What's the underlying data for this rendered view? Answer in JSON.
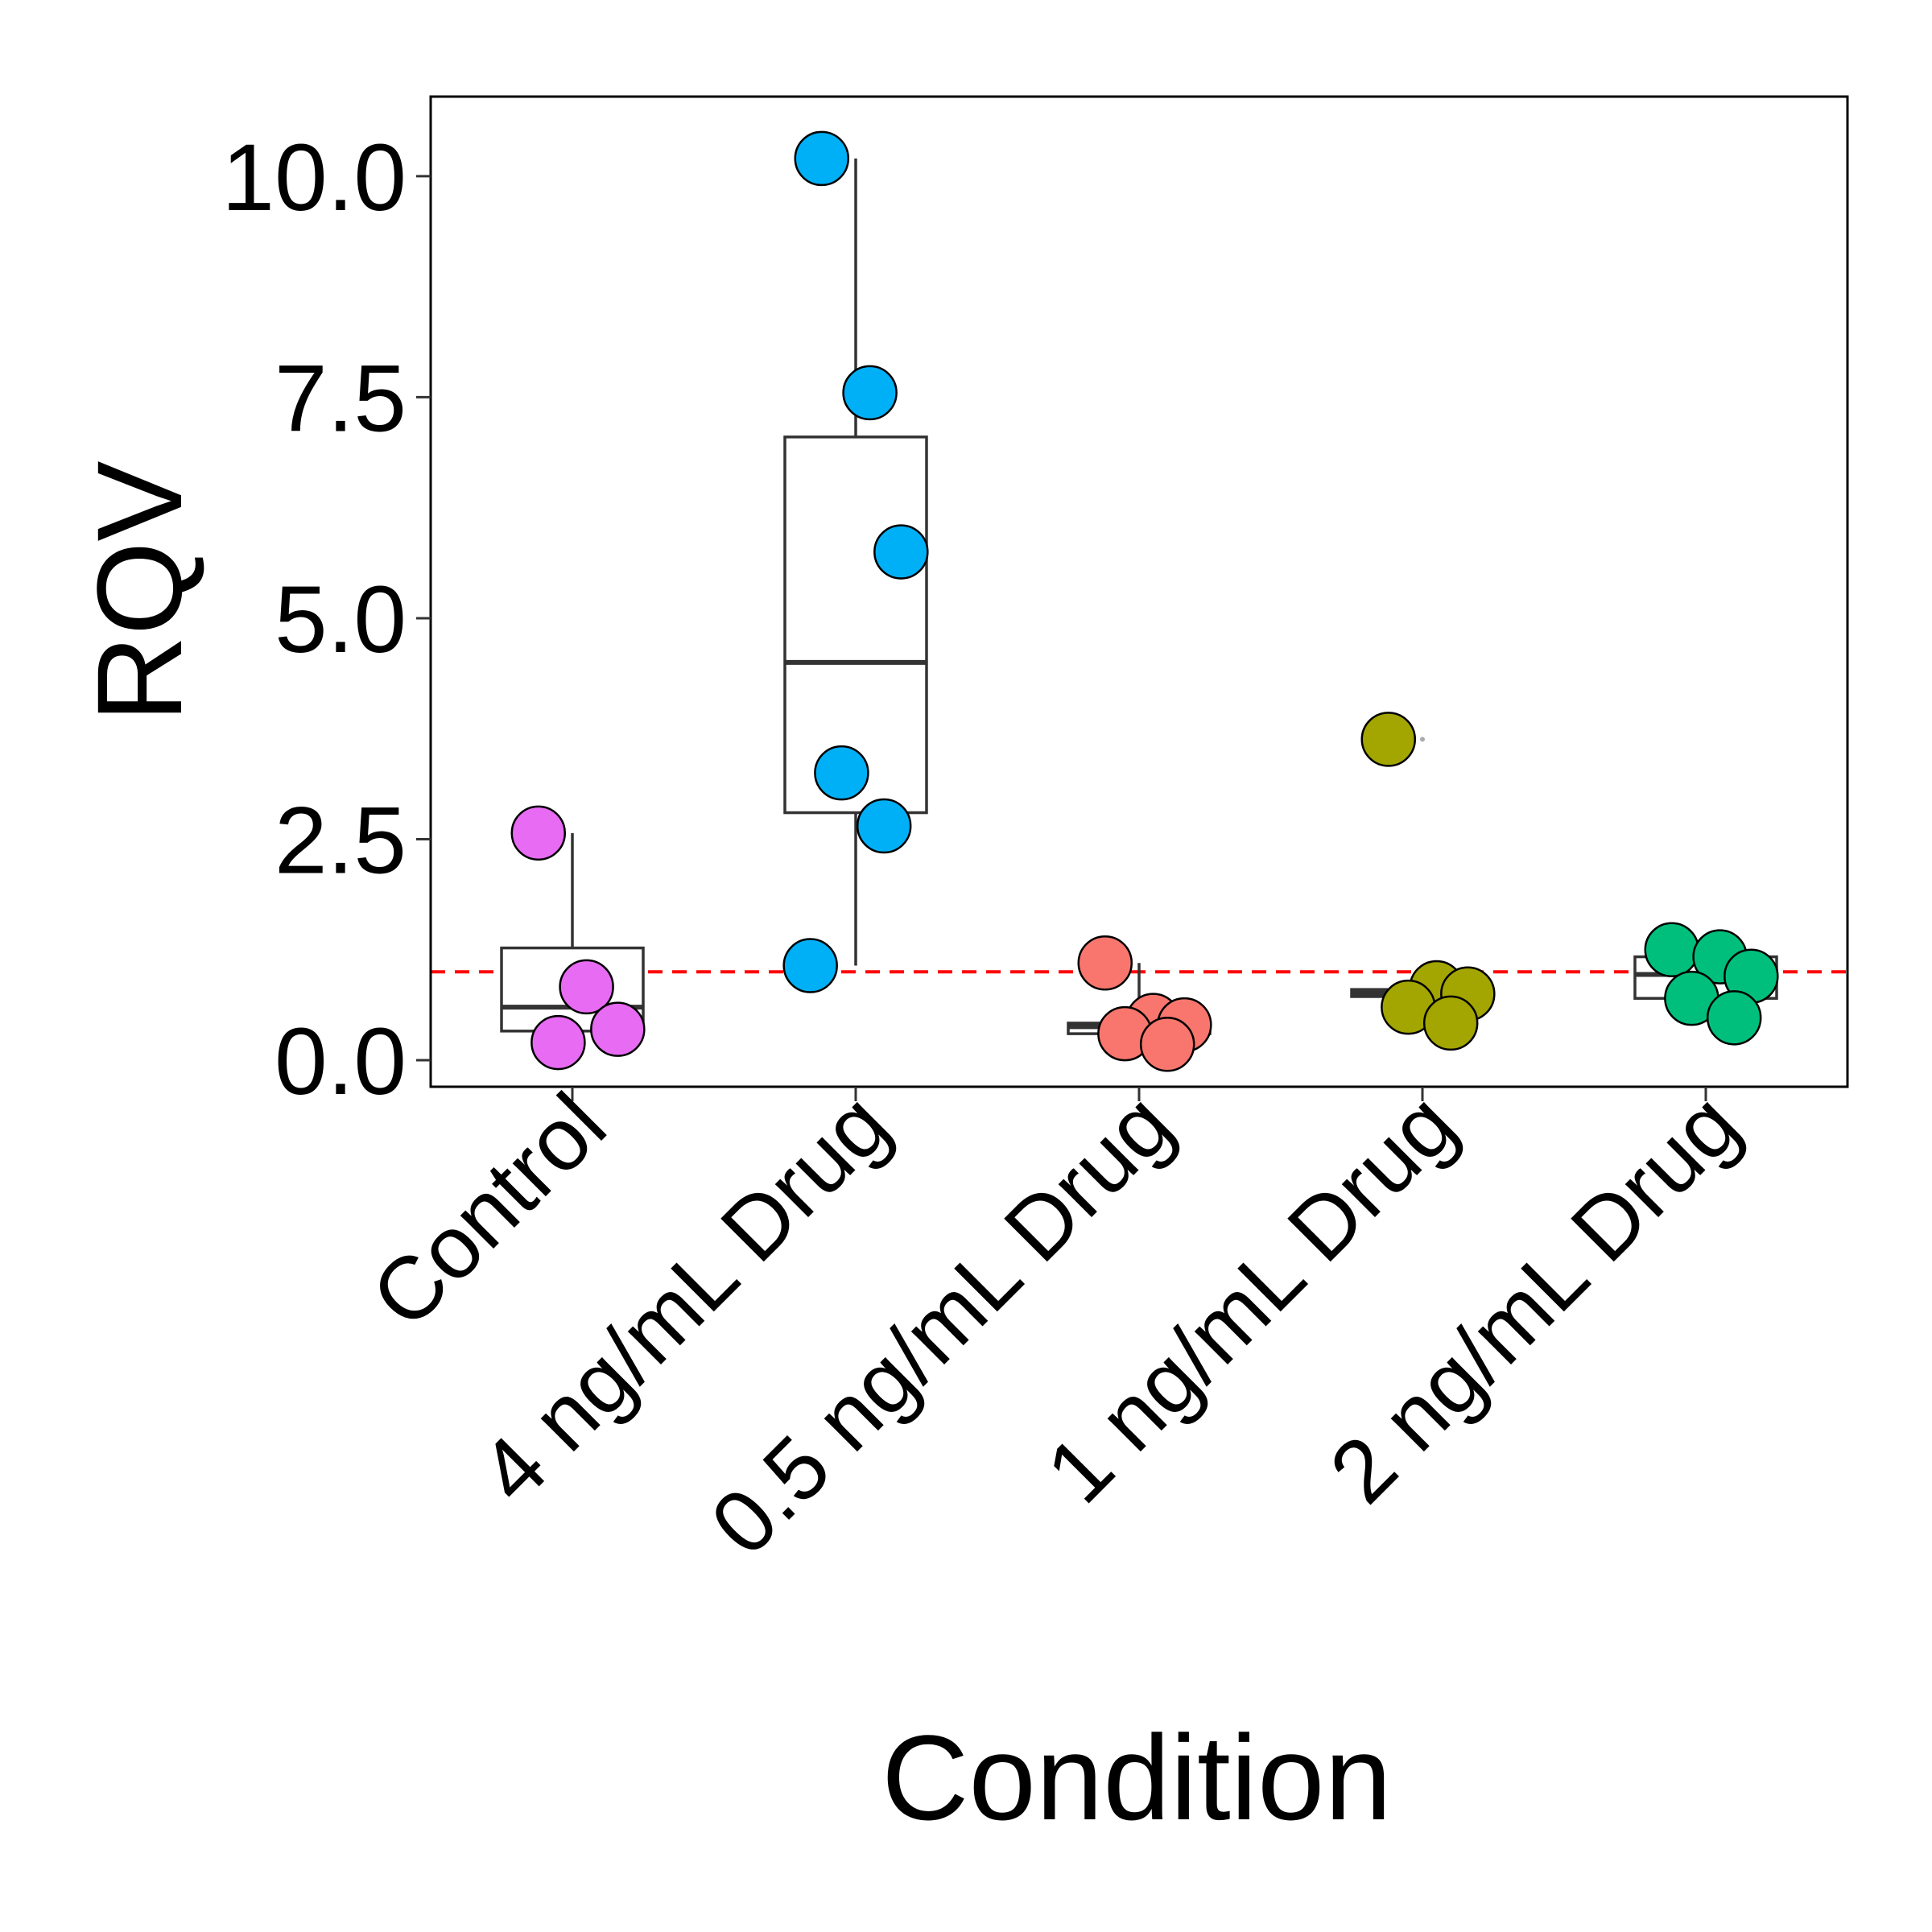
{
  "chart_data": {
    "type": "box-dot",
    "title": "",
    "xlabel": "Condition",
    "ylabel": "RQV",
    "ylim": [
      -0.3,
      10.9
    ],
    "yticks": [
      0.0,
      2.5,
      5.0,
      7.5,
      10.0
    ],
    "ytick_labels": [
      "0.0",
      "2.5",
      "5.0",
      "7.5",
      "10.0"
    ],
    "categories": [
      "Control",
      "4 ng/mL Drug",
      "0.5 ng/mL Drug",
      "1 ng/mL Drug",
      "2 ng/mL Drug"
    ],
    "reference_line": {
      "y": 1.0,
      "color": "#ff0000",
      "style": "dashed"
    },
    "grid": false,
    "legend": "none",
    "groups": [
      {
        "category": "Control",
        "color": "#e76bf3",
        "box": {
          "q1": 0.33,
          "median": 0.6,
          "q3": 1.27,
          "whisker_low": 0.2,
          "whisker_high": 2.57
        },
        "points": [
          2.57,
          0.83,
          0.35,
          0.2
        ]
      },
      {
        "category": "4 ng/mL Drug",
        "color": "#00b0f6",
        "box": {
          "q1": 2.8,
          "median": 4.5,
          "q3": 7.05,
          "whisker_low": 1.07,
          "whisker_high": 10.2
        },
        "points": [
          10.2,
          7.55,
          5.75,
          3.25,
          2.65,
          1.07
        ]
      },
      {
        "category": "0.5 ng/mL Drug",
        "color": "#f8766d",
        "box": {
          "q1": 0.3,
          "median": 0.38,
          "q3": 0.42,
          "whisker_low": 0.18,
          "whisker_high": 1.1
        },
        "points": [
          1.1,
          0.45,
          0.4,
          0.3,
          0.18
        ]
      },
      {
        "category": "1 ng/mL Drug",
        "color": "#a3a500",
        "box": {
          "q1": 0.72,
          "median": 0.76,
          "q3": 0.8,
          "whisker_low": 0.72,
          "whisker_high": 0.8
        },
        "points": [
          3.63,
          0.82,
          0.75,
          0.6,
          0.42
        ],
        "outliers": [
          3.63
        ]
      },
      {
        "category": "2 ng/mL Drug",
        "color": "#00bf7d",
        "box": {
          "q1": 0.7,
          "median": 0.97,
          "q3": 1.17,
          "whisker_low": 0.48,
          "whisker_high": 1.25
        },
        "points": [
          1.25,
          1.17,
          0.95,
          0.7,
          0.48
        ]
      }
    ]
  }
}
